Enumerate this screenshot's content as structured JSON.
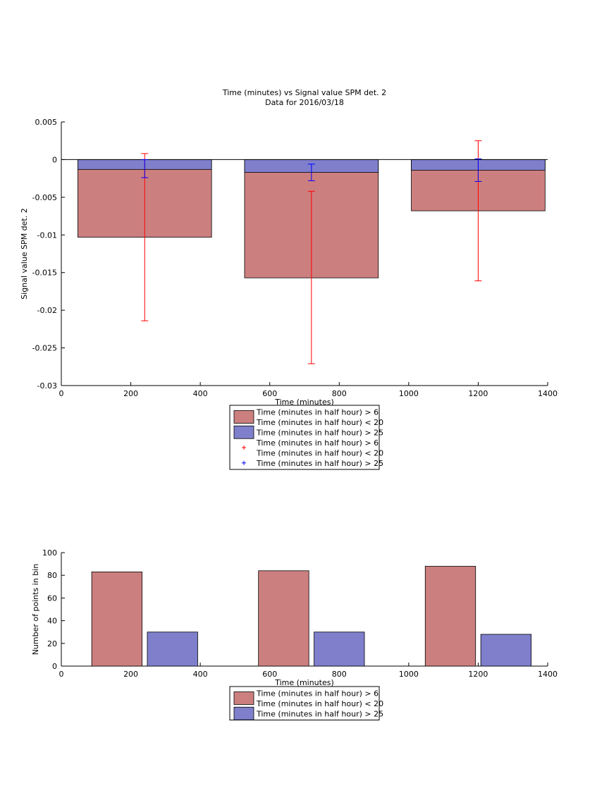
{
  "figure": {
    "title_line1": "Time (minutes) vs Signal value SPM det. 2",
    "title_line2": "Data for 2016/03/18"
  },
  "colors": {
    "red_fill": "#cc7f7f",
    "blue_fill": "#7f7fcc",
    "red_error": "#ff0000",
    "blue_error": "#0000ff",
    "axis": "#000000"
  },
  "chart_data": [
    {
      "type": "bar",
      "xlabel": "Time (minutes)",
      "ylabel": "Signal value SPM det. 2",
      "xlim": [
        0,
        1400
      ],
      "ylim": [
        -0.03,
        0.005
      ],
      "xticks": [
        0,
        200,
        400,
        600,
        800,
        1000,
        1200,
        1400
      ],
      "yticks": [
        0.005,
        0,
        -0.005,
        -0.01,
        -0.015,
        -0.02,
        -0.025,
        -0.03
      ],
      "ytick_labels": [
        "0.005",
        "0",
        "-0.005",
        "-0.01",
        "-0.015",
        "-0.02",
        "-0.025",
        "-0.03"
      ],
      "x_centers": [
        240,
        720,
        1200
      ],
      "bar_width": 385,
      "series": [
        {
          "name": "Time (minutes in half hour) > 6 Time (minutes in half hour) < 20",
          "values": [
            -0.0103,
            -0.0157,
            -0.0068
          ],
          "error_low": [
            -0.0214,
            -0.0271,
            -0.0161
          ],
          "error_high": [
            0.0008,
            -0.0042,
            0.0025
          ]
        },
        {
          "name": "Time (minutes in half hour) > 25",
          "values": [
            -0.0013,
            -0.0017,
            -0.0014
          ],
          "error_low": [
            -0.0024,
            -0.0028,
            -0.0029
          ],
          "error_high": [
            0.0,
            -0.0006,
            0.0001
          ]
        }
      ],
      "legend": {
        "placement": "below",
        "entries": [
          {
            "kind": "patch",
            "color": "red",
            "lines": [
              "Time (minutes in half hour) > 6",
              "Time (minutes in half hour) < 20"
            ]
          },
          {
            "kind": "patch",
            "color": "blue",
            "lines": [
              "Time (minutes in half hour) > 25"
            ]
          },
          {
            "kind": "marker",
            "color": "red",
            "lines": [
              "Time (minutes in half hour) > 6",
              "Time (minutes in half hour) < 20"
            ]
          },
          {
            "kind": "marker",
            "color": "blue",
            "lines": [
              "Time (minutes in half hour) > 25"
            ]
          }
        ]
      }
    },
    {
      "type": "bar",
      "xlabel": "Time (minutes)",
      "ylabel": "Number of points in bin",
      "xlim": [
        0,
        1400
      ],
      "ylim": [
        0,
        100
      ],
      "xticks": [
        0,
        200,
        400,
        600,
        800,
        1000,
        1200,
        1400
      ],
      "yticks": [
        0,
        20,
        40,
        60,
        80,
        100
      ],
      "ytick_labels": [
        "0",
        "20",
        "40",
        "60",
        "80",
        "100"
      ],
      "bar_width": 145,
      "series": [
        {
          "name": "Time (minutes in half hour) > 6 Time (minutes in half hour) < 20",
          "x": [
            160,
            640,
            1120
          ],
          "values": [
            83,
            84,
            88
          ]
        },
        {
          "name": "Time (minutes in half hour) > 25",
          "x": [
            320,
            800,
            1280
          ],
          "values": [
            30,
            30,
            28
          ]
        }
      ],
      "legend": {
        "placement": "below",
        "entries": [
          {
            "kind": "patch",
            "color": "red",
            "lines": [
              "Time (minutes in half hour) > 6",
              "Time (minutes in half hour) < 20"
            ]
          },
          {
            "kind": "patch",
            "color": "blue",
            "lines": [
              "Time (minutes in half hour) > 25"
            ]
          }
        ]
      }
    }
  ]
}
